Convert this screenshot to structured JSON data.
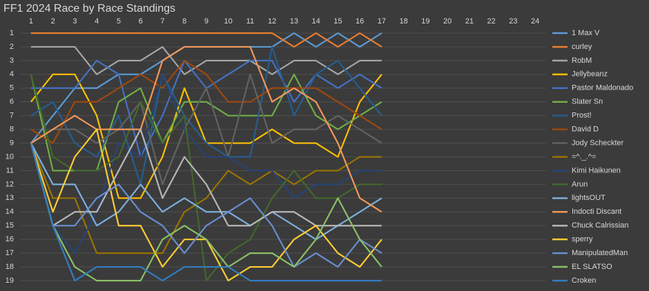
{
  "chart_data": {
    "type": "line",
    "title": "FF1 2024 Race by Race Standings",
    "x": [
      1,
      2,
      3,
      4,
      5,
      6,
      7,
      8,
      9,
      10,
      11,
      12,
      13,
      14,
      15,
      16,
      17
    ],
    "xlim": [
      0.5,
      24.5
    ],
    "xticks": [
      1,
      2,
      3,
      4,
      5,
      6,
      7,
      8,
      9,
      10,
      11,
      12,
      13,
      14,
      15,
      16,
      17,
      18,
      19,
      20,
      21,
      22,
      23,
      24
    ],
    "ylim": [
      1,
      19
    ],
    "y_inverted": true,
    "yticks": [
      1,
      2,
      3,
      4,
      5,
      6,
      7,
      8,
      9,
      10,
      11,
      12,
      13,
      14,
      15,
      16,
      17,
      18,
      19
    ],
    "grid": true,
    "legend": "right",
    "series": [
      {
        "name": "1 Max V",
        "color": "#5b9bd5",
        "values": [
          9,
          7,
          5,
          5,
          4,
          4,
          3,
          2,
          2,
          2,
          2,
          2,
          1,
          2,
          1,
          2,
          1
        ]
      },
      {
        "name": "curley",
        "color": "#ed7d31",
        "values": [
          1,
          1,
          1,
          1,
          1,
          1,
          1,
          1,
          1,
          1,
          1,
          1,
          2,
          1,
          2,
          1,
          2
        ]
      },
      {
        "name": "RobM",
        "color": "#a5a5a5",
        "values": [
          2,
          2,
          2,
          4,
          3,
          3,
          2,
          4,
          3,
          3,
          3,
          4,
          3,
          3,
          4,
          3,
          3
        ]
      },
      {
        "name": "Jellybeanz",
        "color": "#ffc000",
        "values": [
          6,
          4,
          4,
          7,
          13,
          13,
          10,
          5,
          9,
          9,
          9,
          8,
          9,
          9,
          10,
          6,
          4
        ]
      },
      {
        "name": "Pastor Maldonado",
        "color": "#4472c4",
        "values": [
          5,
          5,
          5,
          3,
          4,
          10,
          7,
          3,
          5,
          4,
          3,
          3,
          6,
          4,
          5,
          4,
          5
        ]
      },
      {
        "name": "Slater Sn",
        "color": "#70ad47",
        "values": [
          4,
          11,
          11,
          11,
          6,
          5,
          9,
          6,
          6,
          7,
          7,
          7,
          4,
          7,
          8,
          7,
          6
        ]
      },
      {
        "name": "Prost!",
        "color": "#255e91",
        "values": [
          7,
          6,
          9,
          10,
          7,
          12,
          4,
          7,
          9,
          10,
          10,
          2,
          7,
          4,
          3,
          5,
          7
        ]
      },
      {
        "name": "David D",
        "color": "#9e480e",
        "values": [
          8,
          9,
          6,
          6,
          5,
          4,
          5,
          3,
          4,
          6,
          6,
          5,
          5,
          5,
          6,
          7,
          8
        ]
      },
      {
        "name": "Jody Scheckter",
        "color": "#636363",
        "values": [
          9,
          8,
          8,
          9,
          8,
          6,
          12,
          8,
          5,
          10,
          4,
          9,
          8,
          8,
          7,
          8,
          9
        ]
      },
      {
        "name": "=^._.^=",
        "color": "#997300",
        "values": [
          9,
          13,
          13,
          17,
          17,
          17,
          17,
          14,
          13,
          11,
          12,
          11,
          12,
          11,
          11,
          10,
          10
        ]
      },
      {
        "name": "Kimi Haikunen",
        "color": "#264478",
        "values": [
          9,
          15,
          17,
          14,
          9,
          10,
          4,
          8,
          10,
          10,
          11,
          11,
          13,
          12,
          12,
          11,
          11
        ]
      },
      {
        "name": "Arun",
        "color": "#43682b",
        "values": [
          4,
          10,
          11,
          11,
          10,
          6,
          9,
          7,
          19,
          17,
          16,
          13,
          11,
          13,
          13,
          12,
          12
        ]
      },
      {
        "name": "lightsOUT",
        "color": "#7cafdd",
        "values": [
          9,
          12,
          12,
          15,
          14,
          12,
          14,
          13,
          14,
          14,
          15,
          14,
          15,
          16,
          15,
          14,
          13
        ]
      },
      {
        "name": "Indocti Discant",
        "color": "#f1975a",
        "values": [
          9,
          8,
          7,
          8,
          8,
          8,
          3,
          2,
          2,
          2,
          2,
          6,
          5,
          6,
          9,
          13,
          14
        ]
      },
      {
        "name": "Chuck Calrissian",
        "color": "#b7b7b7",
        "values": [
          9,
          15,
          14,
          14,
          11,
          8,
          13,
          10,
          12,
          15,
          15,
          14,
          14,
          15,
          15,
          15,
          15
        ]
      },
      {
        "name": "sperry",
        "color": "#ffcd33",
        "values": [
          9,
          14,
          10,
          8,
          15,
          15,
          18,
          16,
          16,
          19,
          18,
          18,
          16,
          15,
          17,
          18,
          16
        ]
      },
      {
        "name": "ManipulatedMan",
        "color": "#698ed0",
        "values": [
          9,
          15,
          15,
          13,
          12,
          14,
          15,
          17,
          15,
          14,
          13,
          15,
          18,
          17,
          18,
          16,
          17
        ]
      },
      {
        "name": "EL SLATSO",
        "color": "#8cc168",
        "values": [
          9,
          15,
          18,
          19,
          19,
          19,
          16,
          15,
          16,
          18,
          17,
          17,
          18,
          16,
          13,
          16,
          18
        ]
      },
      {
        "name": "Croken",
        "color": "#327dc2",
        "values": [
          9,
          15,
          19,
          18,
          18,
          18,
          19,
          18,
          18,
          18,
          19,
          19,
          19,
          19,
          19,
          19,
          19
        ]
      }
    ]
  }
}
